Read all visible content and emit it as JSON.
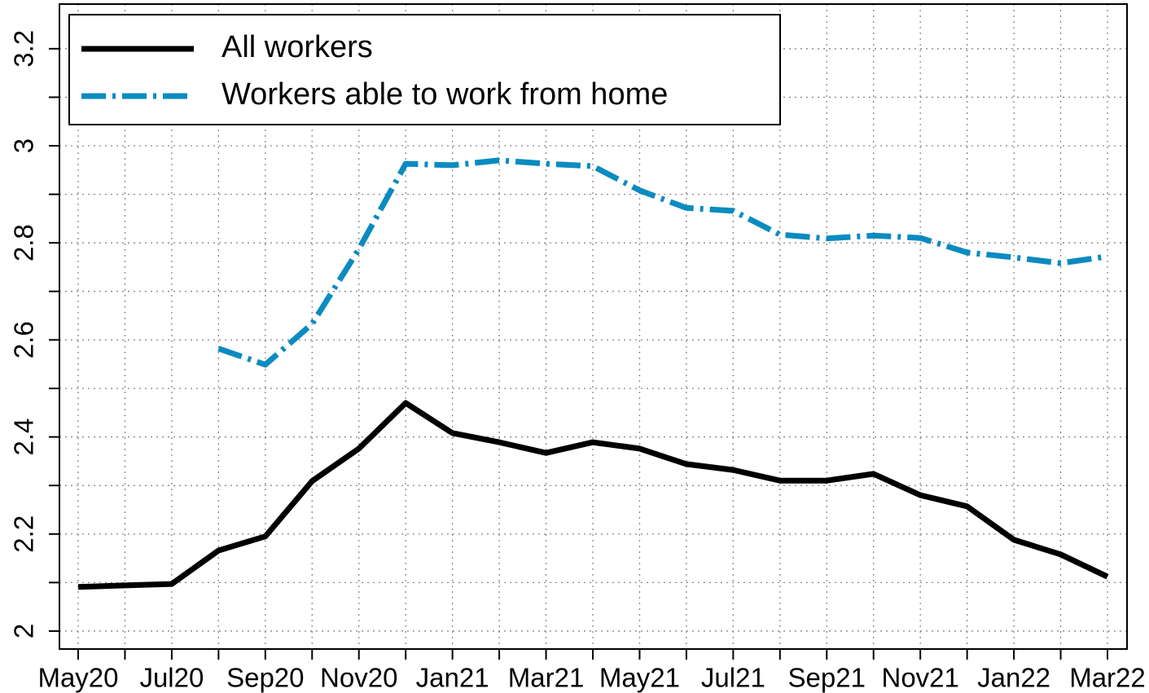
{
  "chart_data": {
    "type": "line",
    "categories": [
      "May20",
      null,
      "Jul20",
      null,
      "Sep20",
      null,
      "Nov20",
      null,
      "Jan21",
      null,
      "Mar21",
      null,
      "May21",
      null,
      "Jul21",
      null,
      "Sep21",
      null,
      "Nov21",
      null,
      "Jan22",
      null,
      "Mar22"
    ],
    "series": [
      {
        "name": "All workers",
        "color": "#000000",
        "style": "solid",
        "values": [
          2.091,
          2.094,
          2.097,
          2.166,
          2.195,
          2.309,
          2.376,
          2.47,
          2.408,
          2.389,
          2.367,
          2.389,
          2.376,
          2.344,
          2.332,
          2.31,
          2.31,
          2.324,
          2.28,
          2.257,
          2.188,
          2.158,
          2.112
        ]
      },
      {
        "name": "Workers able to work from home",
        "color": "#0a8bc0",
        "style": "dashdot",
        "values": [
          null,
          null,
          null,
          2.582,
          2.549,
          2.633,
          2.787,
          2.963,
          2.96,
          2.97,
          2.963,
          2.958,
          2.908,
          2.872,
          2.866,
          2.817,
          2.809,
          2.815,
          2.81,
          2.78,
          2.77,
          2.758,
          2.772
        ]
      }
    ],
    "ylim": [
      1.963,
      3.292
    ],
    "yticks": [
      2,
      2.2,
      2.4,
      2.6,
      2.8,
      3,
      3.2
    ],
    "yminor_ticks": [
      2.1,
      2.3,
      2.5,
      2.7,
      2.9,
      3.1
    ],
    "grid": true,
    "legend": "upper left"
  }
}
